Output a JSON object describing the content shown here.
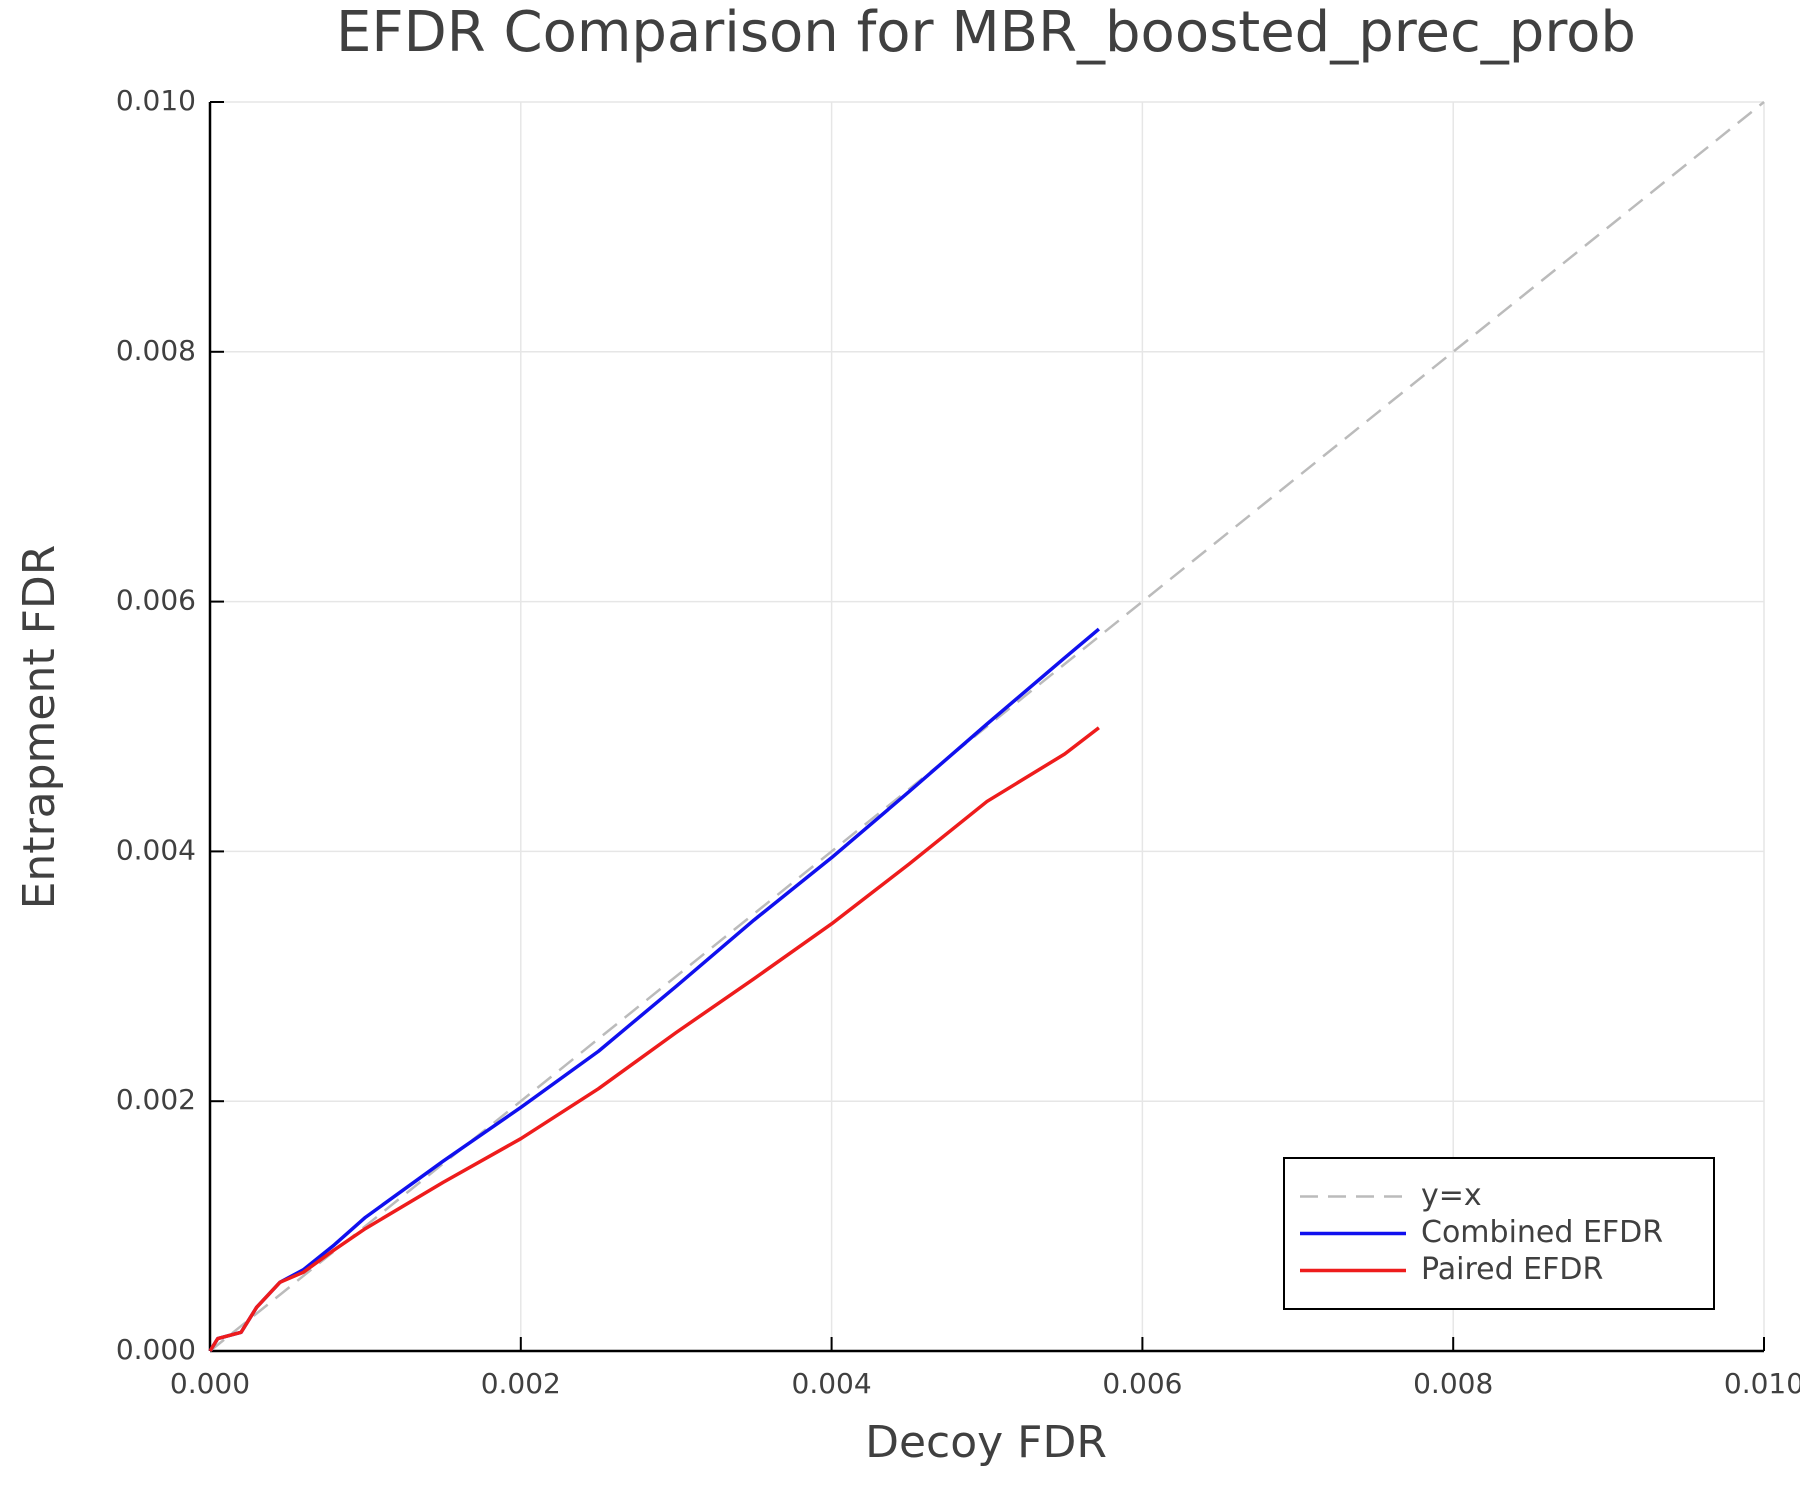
{
  "chart_data": {
    "type": "line",
    "title": "EFDR Comparison for MBR_boosted_prec_prob",
    "xlabel": "Decoy FDR",
    "ylabel": "Entrapment FDR",
    "xlim": [
      0,
      0.01
    ],
    "ylim": [
      0,
      0.01
    ],
    "xticks": [
      {
        "value": 0,
        "label": "0.000"
      },
      {
        "value": 0.002,
        "label": "0.002"
      },
      {
        "value": 0.004,
        "label": "0.004"
      },
      {
        "value": 0.006,
        "label": "0.006"
      },
      {
        "value": 0.008,
        "label": "0.008"
      },
      {
        "value": 0.01,
        "label": "0.010"
      }
    ],
    "yticks": [
      {
        "value": 0,
        "label": "0.000"
      },
      {
        "value": 0.002,
        "label": "0.002"
      },
      {
        "value": 0.004,
        "label": "0.004"
      },
      {
        "value": 0.006,
        "label": "0.006"
      },
      {
        "value": 0.008,
        "label": "0.008"
      },
      {
        "value": 0.01,
        "label": "0.010"
      }
    ],
    "grid": true,
    "legend": "lower right",
    "series": [
      {
        "name": "y=x",
        "color": "#bbbbbb",
        "dashed": true,
        "x": [
          0,
          0.01
        ],
        "values": [
          0,
          0.01
        ]
      },
      {
        "name": "Combined EFDR",
        "color": "#1010ee",
        "x": [
          0,
          5e-05,
          0.0002,
          0.0003,
          0.00045,
          0.0006,
          0.0008,
          0.001,
          0.0015,
          0.002,
          0.0025,
          0.003,
          0.0035,
          0.004,
          0.0045,
          0.005,
          0.0055,
          0.00572
        ],
        "values": [
          0,
          0.0001,
          0.00015,
          0.00035,
          0.00055,
          0.00065,
          0.00085,
          0.00107,
          0.00152,
          0.00195,
          0.0024,
          0.00292,
          0.00345,
          0.00395,
          0.00448,
          0.00502,
          0.00555,
          0.00578
        ]
      },
      {
        "name": "Paired EFDR",
        "color": "#ee1c1c",
        "x": [
          0,
          5e-05,
          0.0002,
          0.0003,
          0.00045,
          0.0006,
          0.0008,
          0.001,
          0.0015,
          0.002,
          0.0025,
          0.003,
          0.0035,
          0.004,
          0.0045,
          0.005,
          0.0055,
          0.00572
        ],
        "values": [
          0,
          0.0001,
          0.00015,
          0.00035,
          0.00055,
          0.00063,
          0.00081,
          0.00098,
          0.00135,
          0.0017,
          0.0021,
          0.00255,
          0.00298,
          0.00342,
          0.0039,
          0.0044,
          0.00478,
          0.00499
        ]
      }
    ]
  }
}
